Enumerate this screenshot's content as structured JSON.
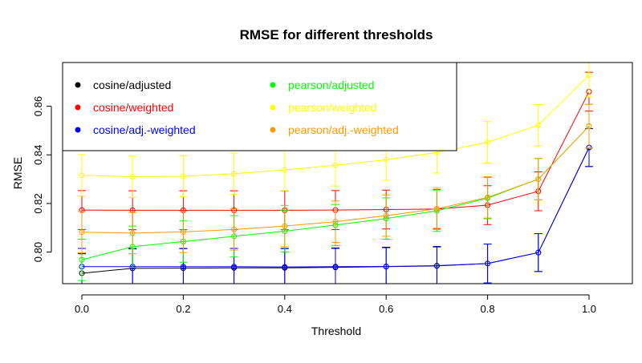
{
  "chart_data": {
    "type": "line",
    "title": "RMSE for different thresholds",
    "xlabel": "Threshold",
    "ylabel": "RMSE",
    "xlim": [
      0.0,
      1.0
    ],
    "ylim": [
      0.787,
      0.878
    ],
    "x": [
      0.0,
      0.1,
      0.2,
      0.3,
      0.4,
      0.5,
      0.6,
      0.7,
      0.8,
      0.9,
      1.0
    ],
    "xticks": [
      0.0,
      0.2,
      0.4,
      0.6,
      0.8,
      1.0
    ],
    "xtick_labels": [
      "0.0",
      "0.2",
      "0.4",
      "0.6",
      "0.8",
      "1.0"
    ],
    "yticks": [
      0.8,
      0.82,
      0.84,
      0.86
    ],
    "ytick_labels": [
      "0.80",
      "0.82",
      "0.84",
      "0.86"
    ],
    "grid": false,
    "legend_position": "top-left",
    "error_bars": true,
    "series": [
      {
        "name": "cosine/adjusted",
        "color": "#000000",
        "values": [
          0.7913,
          0.7933,
          0.7934,
          0.7935,
          0.7935,
          0.7937,
          0.794,
          0.7943,
          0.7953,
          0.7998,
          0.843
        ],
        "error": [
          0.008,
          0.008,
          0.008,
          0.008,
          0.008,
          0.008,
          0.008,
          0.008,
          0.008,
          0.0078,
          0.0078
        ]
      },
      {
        "name": "cosine/weighted",
        "color": "#ff0000",
        "values": [
          0.8173,
          0.8172,
          0.8172,
          0.8172,
          0.8172,
          0.8173,
          0.8175,
          0.8177,
          0.8193,
          0.825,
          0.866
        ],
        "error": [
          0.008,
          0.008,
          0.008,
          0.008,
          0.008,
          0.008,
          0.008,
          0.008,
          0.008,
          0.008,
          0.008
        ]
      },
      {
        "name": "cosine/adj.-weighted",
        "color": "#0000ff",
        "values": [
          0.794,
          0.794,
          0.794,
          0.794,
          0.7939,
          0.794,
          0.7941,
          0.7944,
          0.7953,
          0.7998,
          0.843
        ],
        "error": [
          0.0075,
          0.0075,
          0.0075,
          0.0075,
          0.0075,
          0.0075,
          0.0077,
          0.0077,
          0.008,
          0.0078,
          0.0078
        ]
      },
      {
        "name": "pearson/adjusted",
        "color": "#00ff00",
        "values": [
          0.7968,
          0.8022,
          0.8043,
          0.8065,
          0.8086,
          0.8111,
          0.8138,
          0.817,
          0.8222,
          0.83,
          0.8518
        ],
        "error": [
          0.0085,
          0.0085,
          0.0085,
          0.0085,
          0.0085,
          0.0085,
          0.0085,
          0.0085,
          0.0085,
          0.0085,
          0.009
        ]
      },
      {
        "name": "pearson/weighted",
        "color": "#ffff00",
        "values": [
          0.8316,
          0.831,
          0.8312,
          0.8322,
          0.8338,
          0.8357,
          0.838,
          0.841,
          0.8452,
          0.8522,
          0.8728
        ],
        "error": [
          0.0085,
          0.0085,
          0.0085,
          0.0085,
          0.0085,
          0.0085,
          0.0085,
          0.0085,
          0.0085,
          0.0085,
          0.009
        ]
      },
      {
        "name": "pearson/adj.-weighted",
        "color": "#ff9900",
        "values": [
          0.8082,
          0.8078,
          0.8083,
          0.8093,
          0.8107,
          0.8125,
          0.815,
          0.8178,
          0.8225,
          0.83,
          0.8518
        ],
        "error": [
          0.0085,
          0.0085,
          0.0085,
          0.0085,
          0.0085,
          0.0085,
          0.0085,
          0.0085,
          0.0085,
          0.0085,
          0.009
        ]
      }
    ]
  }
}
